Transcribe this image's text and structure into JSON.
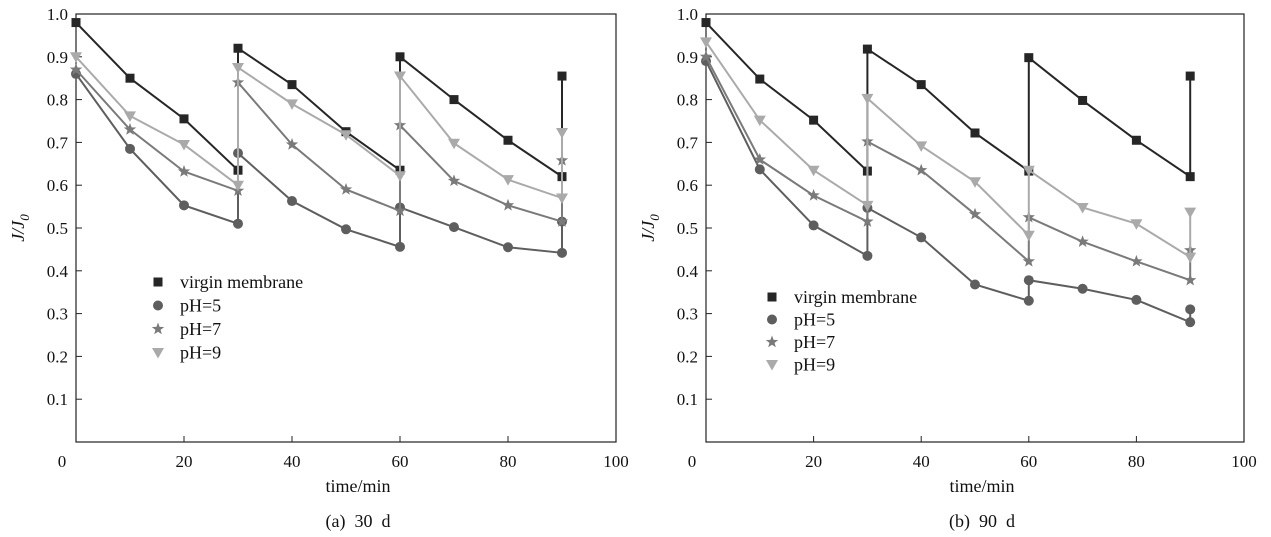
{
  "chart_data": [
    {
      "type": "line",
      "caption": "(a)  30  d",
      "xlabel": "time/min",
      "ylabel": "J/J",
      "ylabel_sub": "0",
      "xlim": [
        0,
        100
      ],
      "ylim": [
        0,
        1.0
      ],
      "xticks": [
        "0",
        "20",
        "40",
        "60",
        "80",
        "100"
      ],
      "yticks": [
        "0.1",
        "0.2",
        "0.3",
        "0.4",
        "0.5",
        "0.6",
        "0.7",
        "0.8",
        "0.9",
        "1.0"
      ],
      "legend": [
        "virgin membrane",
        "pH=5",
        "pH=7",
        "pH=9"
      ],
      "series": [
        {
          "name": "virgin membrane",
          "color": "#262626",
          "marker": "square",
          "x": [
            0,
            10,
            20,
            30,
            30,
            40,
            50,
            60,
            60,
            70,
            80,
            90,
            90
          ],
          "y": [
            0.98,
            0.85,
            0.755,
            0.635,
            0.92,
            0.835,
            0.725,
            0.635,
            0.9,
            0.8,
            0.705,
            0.62,
            0.855
          ]
        },
        {
          "name": "pH=5",
          "color": "#5e5e5e",
          "marker": "circle",
          "x": [
            0,
            10,
            20,
            30,
            30,
            40,
            50,
            60,
            60,
            70,
            80,
            90,
            90
          ],
          "y": [
            0.86,
            0.685,
            0.553,
            0.51,
            0.675,
            0.563,
            0.497,
            0.456,
            0.548,
            0.502,
            0.455,
            0.442,
            0.515
          ]
        },
        {
          "name": "pH=7",
          "color": "#7a7a7a",
          "marker": "star",
          "x": [
            0,
            10,
            20,
            30,
            30,
            40,
            50,
            60,
            60,
            70,
            80,
            90,
            90
          ],
          "y": [
            0.87,
            0.73,
            0.632,
            0.587,
            0.84,
            0.695,
            0.59,
            0.54,
            0.74,
            0.61,
            0.553,
            0.515,
            0.658
          ]
        },
        {
          "name": "pH=9",
          "color": "#aaaaaa",
          "marker": "triangle-down",
          "x": [
            0,
            10,
            20,
            30,
            30,
            40,
            50,
            60,
            60,
            70,
            80,
            90,
            90
          ],
          "y": [
            0.9,
            0.762,
            0.695,
            0.6,
            0.875,
            0.79,
            0.718,
            0.622,
            0.855,
            0.698,
            0.613,
            0.57,
            0.723
          ]
        }
      ]
    },
    {
      "type": "line",
      "caption": "(b)  90  d",
      "xlabel": "time/min",
      "ylabel": "J/J",
      "ylabel_sub": "0",
      "xlim": [
        0,
        100
      ],
      "ylim": [
        0,
        1.0
      ],
      "xticks": [
        "0",
        "20",
        "40",
        "60",
        "80",
        "100"
      ],
      "yticks": [
        "0.1",
        "0.2",
        "0.3",
        "0.4",
        "0.5",
        "0.6",
        "0.7",
        "0.8",
        "0.9",
        "1.0"
      ],
      "legend": [
        "virgin membrane",
        "pH=5",
        "pH=7",
        "pH=9"
      ],
      "series": [
        {
          "name": "virgin membrane",
          "color": "#262626",
          "marker": "square",
          "x": [
            0,
            10,
            20,
            30,
            30,
            40,
            50,
            60,
            60,
            70,
            80,
            90,
            90
          ],
          "y": [
            0.98,
            0.848,
            0.752,
            0.633,
            0.918,
            0.835,
            0.722,
            0.633,
            0.898,
            0.798,
            0.705,
            0.62,
            0.855
          ]
        },
        {
          "name": "pH=5",
          "color": "#5e5e5e",
          "marker": "circle",
          "x": [
            0,
            10,
            20,
            30,
            30,
            40,
            50,
            60,
            60,
            70,
            80,
            90,
            90
          ],
          "y": [
            0.89,
            0.637,
            0.506,
            0.435,
            0.547,
            0.478,
            0.368,
            0.33,
            0.378,
            0.358,
            0.332,
            0.28,
            0.31
          ]
        },
        {
          "name": "pH=7",
          "color": "#7a7a7a",
          "marker": "star",
          "x": [
            0,
            10,
            20,
            30,
            30,
            40,
            50,
            60,
            60,
            70,
            80,
            90,
            90
          ],
          "y": [
            0.9,
            0.66,
            0.576,
            0.515,
            0.702,
            0.635,
            0.532,
            0.422,
            0.525,
            0.468,
            0.422,
            0.378,
            0.448
          ]
        },
        {
          "name": "pH=9",
          "color": "#aaaaaa",
          "marker": "triangle-down",
          "x": [
            0,
            10,
            20,
            30,
            30,
            40,
            50,
            60,
            60,
            70,
            80,
            90,
            90
          ],
          "y": [
            0.935,
            0.752,
            0.635,
            0.553,
            0.803,
            0.692,
            0.608,
            0.483,
            0.635,
            0.548,
            0.51,
            0.432,
            0.537
          ]
        }
      ]
    }
  ]
}
